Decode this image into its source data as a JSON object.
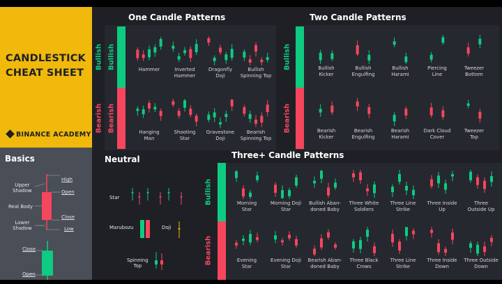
{
  "title_lines": [
    "CANDLESTICK",
    "CHEAT SHEET"
  ],
  "brand": "BINANCE ACADEMY",
  "colors": {
    "bull": "#0ecb81",
    "bear": "#f6465d",
    "accent": "#f0b90b",
    "doji": "#f0b90b"
  },
  "sections": {
    "one_candle": "One Candle Patterns",
    "two_candle": "Two Candle Patterns",
    "basics": "Basics",
    "neutral": "Neutral",
    "three_candle": "Three+ Candle Patterns"
  },
  "side_labels": {
    "bullish": "Bullish",
    "bearish": "Bearish"
  },
  "basics": {
    "high": "High",
    "open_top": "Open",
    "upper_shadow": "Upper\nShadow",
    "real_body": "Real Body",
    "close_mid": "Close",
    "lower_shadow": "Lower\nShadow",
    "low": "Low",
    "close_bottom": "Close",
    "open_bottom": "Open"
  },
  "neutral": {
    "star": "Star",
    "marubozu": "Marubozu",
    "doji": "Doji",
    "spinning_top": "Spinning\nTop"
  },
  "one_candle": {
    "bullish": [
      "Hammer",
      "Inverted\nHammer",
      "Dragonfly\nDoji",
      "Bullish\nSpinning Top"
    ],
    "bearish": [
      "Hanging\nMan",
      "Shooting\nStar",
      "Gravestone\nDoji",
      "Bearish\nSpinning Top"
    ]
  },
  "two_candle": {
    "bullish": [
      "Bullish\nKicker",
      "Bullish\nEngulfing",
      "Bullish\nHarami",
      "Piercing\nLine",
      "Tweezer\nBottom"
    ],
    "bearish": [
      "Bearish\nKicker",
      "Bearish\nEngulfing",
      "Bearish\nHarami",
      "Dark Cloud\nCover",
      "Tweezer\nTop"
    ]
  },
  "three_candle": {
    "bullish": [
      "Morning\nStar",
      "Morning Doji\nStar",
      "Bullish Aban-\ndoned Baby",
      "Three White\nSoldiers",
      "Three Line\nStrike",
      "Three Inside\nUp",
      "Three\nOutside Up"
    ],
    "bearish": [
      "Evening\nStar",
      "Evening Doji\nStar",
      "Bearish Aban-\ndoned Baby",
      "Three Black\nCrows",
      "Three Line\nStrike",
      "Three Inside\nDown",
      "Three Outside\nDown"
    ]
  }
}
